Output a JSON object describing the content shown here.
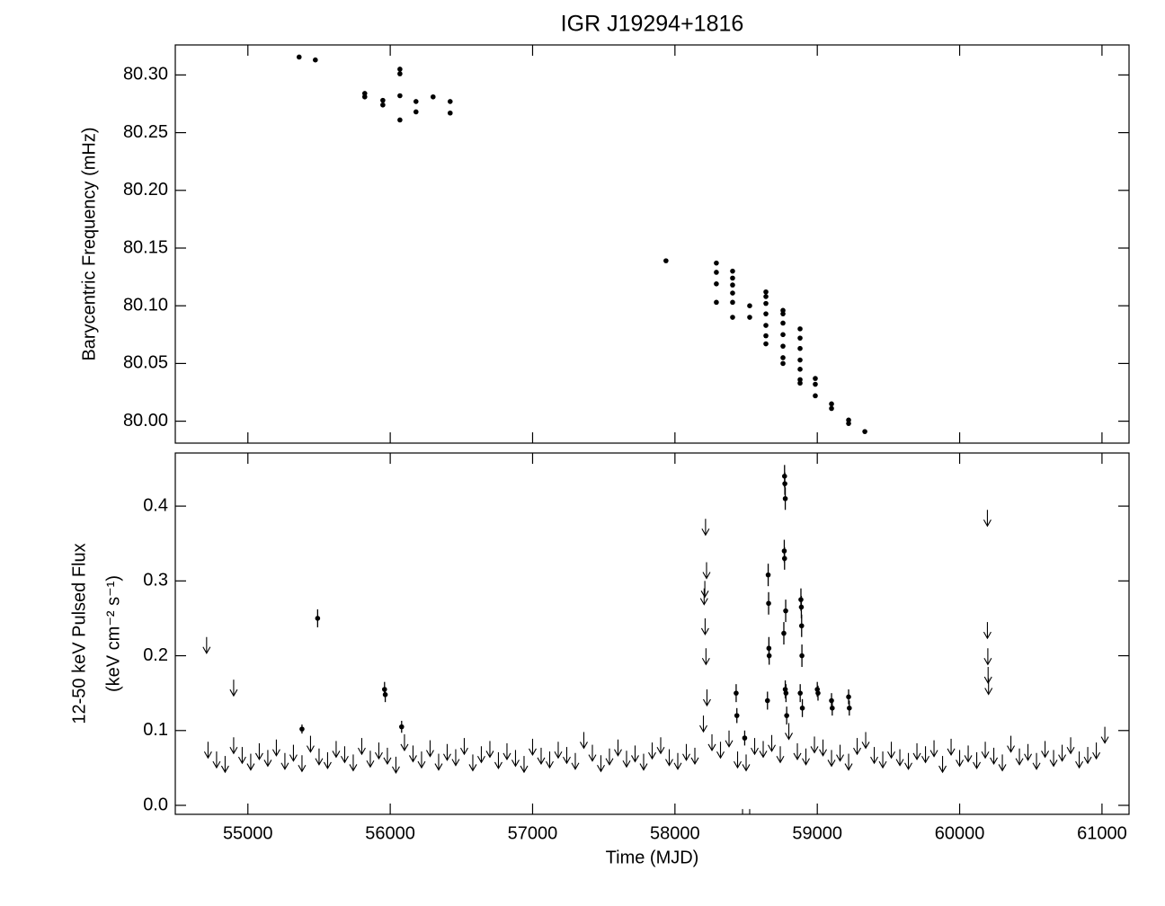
{
  "chart_data": [
    {
      "type": "scatter",
      "title": "IGR J19294+1816",
      "ylabel": "Barycentric Frequency (mHz)",
      "xlim": [
        54490,
        61190
      ],
      "xticks": [
        55000,
        56000,
        57000,
        58000,
        59000,
        60000,
        61000
      ],
      "xtick_labels": false,
      "ylim": [
        79.981,
        80.326
      ],
      "yticks": [
        {
          "value": 80.0,
          "label": "80.00"
        },
        {
          "value": 80.05,
          "label": "80.05"
        },
        {
          "value": 80.1,
          "label": "80.10"
        },
        {
          "value": 80.15,
          "label": "80.15"
        },
        {
          "value": 80.2,
          "label": "80.20"
        },
        {
          "value": 80.25,
          "label": "80.25"
        },
        {
          "value": 80.3,
          "label": "80.30"
        }
      ],
      "series": [
        {
          "marker": "dot",
          "color": "#000000",
          "x": [
            55360,
            55474,
            55821,
            55821,
            55948,
            55948,
            56068,
            56068,
            56068,
            56068,
            56181,
            56181,
            56301,
            56421,
            56421,
            57937,
            58291,
            58291,
            58291,
            58291,
            58405,
            58405,
            58405,
            58405,
            58405,
            58405,
            58525,
            58525,
            58639,
            58639,
            58639,
            58639,
            58639,
            58639,
            58639,
            58759,
            58759,
            58759,
            58759,
            58759,
            58759,
            58759,
            58879,
            58879,
            58879,
            58879,
            58879,
            58879,
            58879,
            58986,
            58986,
            58986,
            59100,
            59100,
            59220,
            59220,
            59334
          ],
          "values": [
            80.3155,
            80.313,
            80.284,
            80.281,
            80.278,
            80.274,
            80.305,
            80.301,
            80.282,
            80.261,
            80.277,
            80.268,
            80.281,
            80.277,
            80.267,
            80.139,
            80.137,
            80.129,
            80.119,
            80.103,
            80.13,
            80.124,
            80.118,
            80.111,
            80.103,
            80.09,
            80.1,
            80.09,
            80.112,
            80.108,
            80.102,
            80.093,
            80.083,
            80.074,
            80.067,
            80.096,
            80.093,
            80.085,
            80.075,
            80.065,
            80.055,
            80.05,
            80.08,
            80.072,
            80.063,
            80.053,
            80.045,
            80.036,
            80.033,
            80.037,
            80.032,
            80.022,
            80.015,
            80.011,
            80.001,
            79.998,
            79.991
          ]
        }
      ]
    },
    {
      "type": "scatter",
      "xlabel": "Time (MJD)",
      "ylabel": [
        "12-50 keV Pulsed Flux",
        "(keV cm⁻² s⁻¹)"
      ],
      "xlim": [
        54490,
        61190
      ],
      "xticks": [
        55000,
        56000,
        57000,
        58000,
        59000,
        60000,
        61000
      ],
      "ylim": [
        -0.012,
        0.471
      ],
      "yticks": [
        {
          "value": 0,
          "label": "0.0"
        },
        0.1,
        0.2,
        0.3,
        0.4
      ],
      "series": [
        {
          "marker": "arrow",
          "color": "#000000",
          "x": [
            54720,
            54780,
            54840,
            54900,
            54960,
            55020,
            55080,
            55140,
            55200,
            55260,
            55320,
            55380,
            55440,
            55500,
            55560,
            55620,
            55680,
            55740,
            55800,
            55860,
            55920,
            55980,
            56040,
            56100,
            56160,
            56220,
            56280,
            56340,
            56400,
            56460,
            56520,
            56580,
            56640,
            56700,
            56760,
            56820,
            56880,
            56940,
            57000,
            57060,
            57120,
            57180,
            57240,
            57300,
            57360,
            57420,
            57480,
            57540,
            57600,
            57660,
            57720,
            57780,
            57840,
            57900,
            57960,
            58020,
            58080,
            58140,
            58200,
            58260,
            58320,
            58380,
            58440,
            58500,
            58560,
            58620,
            58680,
            58740,
            58800,
            58860,
            58920,
            58980,
            59040,
            59100,
            59160,
            59220,
            59280,
            59340,
            59400,
            59460,
            59520,
            59580,
            59640,
            59700,
            59760,
            59820,
            59880,
            59940,
            60000,
            60060,
            60120,
            60180,
            60240,
            60300,
            60360,
            60420,
            60480,
            60540,
            60600,
            60660,
            60720,
            60780,
            60840,
            60900,
            60960,
            61020
          ],
          "values": [
            0.085,
            0.072,
            0.066,
            0.091,
            0.078,
            0.069,
            0.083,
            0.074,
            0.088,
            0.07,
            0.081,
            0.067,
            0.093,
            0.076,
            0.071,
            0.086,
            0.079,
            0.068,
            0.09,
            0.073,
            0.084,
            0.077,
            0.065,
            0.095,
            0.08,
            0.072,
            0.087,
            0.069,
            0.082,
            0.075,
            0.09,
            0.068,
            0.079,
            0.086,
            0.071,
            0.083,
            0.074,
            0.066,
            0.089,
            0.077,
            0.072,
            0.085,
            0.078,
            0.07,
            0.098,
            0.081,
            0.067,
            0.076,
            0.088,
            0.073,
            0.08,
            0.069,
            0.084,
            0.091,
            0.075,
            0.07,
            0.082,
            0.077,
            0.12,
            0.095,
            0.085,
            0.1,
            0.072,
            0.068,
            0.09,
            0.086,
            0.094,
            0.079,
            0.11,
            0.083,
            0.076,
            0.092,
            0.088,
            0.074,
            0.081,
            0.069,
            0.09,
            0.098,
            0.078,
            0.072,
            0.085,
            0.075,
            0.07,
            0.083,
            0.079,
            0.087,
            0.066,
            0.089,
            0.074,
            0.08,
            0.071,
            0.085,
            0.077,
            0.068,
            0.093,
            0.076,
            0.082,
            0.07,
            0.086,
            0.074,
            0.081,
            0.091,
            0.072,
            0.078,
            0.084,
            0.105
          ]
        },
        {
          "marker": "arrow",
          "color": "#000000",
          "x": [
            54710,
            54900,
            58215,
            58222,
            58210,
            58205,
            58212,
            58218,
            58225,
            60195,
            60195,
            60198,
            60200,
            60203,
            58475,
            58525
          ],
          "values": [
            0.225,
            0.168,
            0.383,
            0.325,
            0.3,
            0.29,
            0.25,
            0.21,
            0.155,
            0.395,
            0.245,
            0.21,
            0.185,
            0.17,
            -0.005,
            -0.005
          ]
        },
        {
          "marker": "dot",
          "color": "#000000",
          "x": [
            55490,
            55380,
            55960,
            55965,
            56080,
            58430,
            58435,
            58490,
            58655,
            58658,
            58660,
            58662,
            58650,
            58770,
            58772,
            58775,
            58768,
            58770,
            58778,
            58765,
            58780,
            58775,
            58785,
            58885,
            58888,
            58890,
            58892,
            58880,
            58895,
            59000,
            59005,
            59100,
            59105,
            59220,
            59225
          ],
          "values": [
            0.25,
            0.102,
            0.155,
            0.148,
            0.105,
            0.15,
            0.12,
            0.09,
            0.308,
            0.27,
            0.21,
            0.2,
            0.14,
            0.44,
            0.43,
            0.41,
            0.34,
            0.33,
            0.26,
            0.23,
            0.15,
            0.155,
            0.12,
            0.275,
            0.265,
            0.24,
            0.2,
            0.15,
            0.13,
            0.155,
            0.15,
            0.14,
            0.13,
            0.145,
            0.13
          ],
          "errors": [
            0.012,
            0.006,
            0.01,
            0.01,
            0.008,
            0.012,
            0.01,
            0.01,
            0.015,
            0.015,
            0.015,
            0.012,
            0.012,
            0.015,
            0.015,
            0.015,
            0.015,
            0.015,
            0.015,
            0.015,
            0.012,
            0.012,
            0.012,
            0.015,
            0.015,
            0.015,
            0.015,
            0.012,
            0.012,
            0.01,
            0.01,
            0.01,
            0.01,
            0.01,
            0.01
          ]
        }
      ]
    }
  ]
}
